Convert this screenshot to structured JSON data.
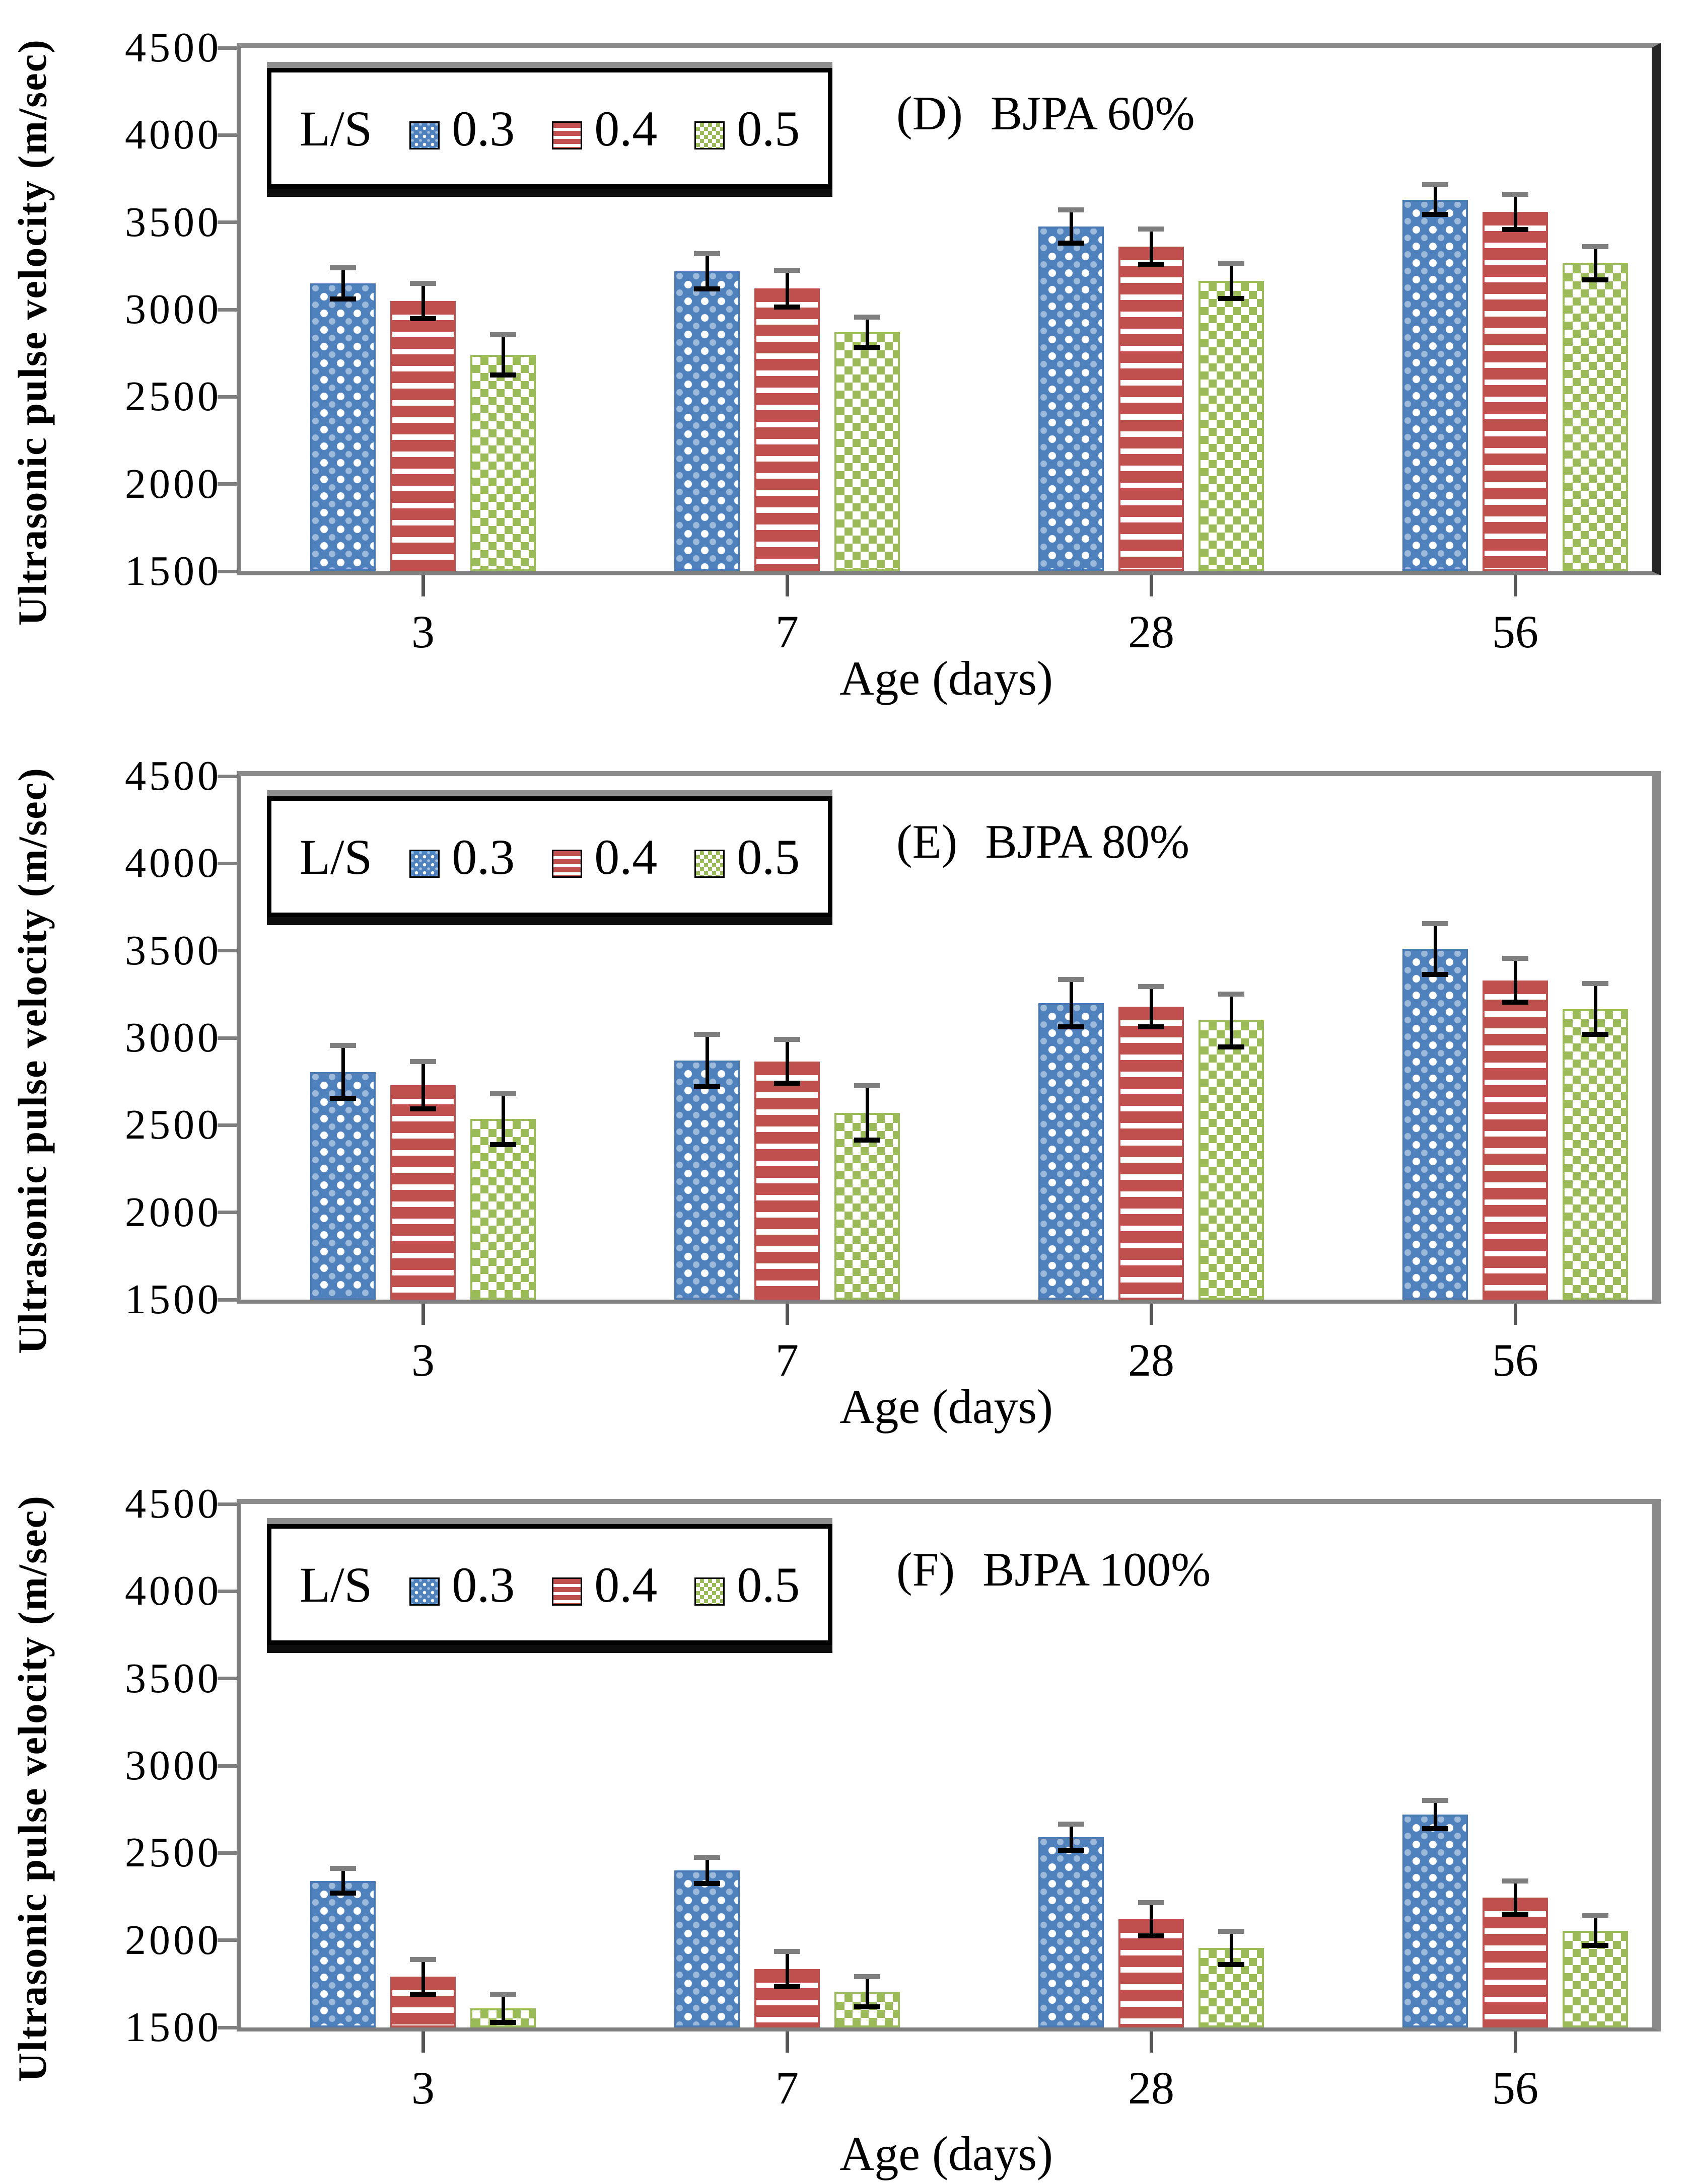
{
  "figure": {
    "background": "#ffffff"
  },
  "error_bar_style": {
    "line": "#000000",
    "cap_top": "#7f7f7f",
    "cap_bottom": "#000000"
  },
  "chart_data": [
    {
      "type": "bar",
      "panel_label": "(D)",
      "title": "BJPA 60%",
      "xlabel": "Age (days)",
      "ylabel": "Ultrasonic pulse velocity (m/sec)",
      "legend_prefix": "L/S",
      "legend_position": "top-left-inside",
      "grid": false,
      "ylim": [
        1500,
        4500
      ],
      "yticks": [
        4500,
        4000,
        3500,
        3000,
        2500,
        2000,
        1500
      ],
      "categories": [
        "3",
        "7",
        "28",
        "56"
      ],
      "axis_color": "#7f7f7f",
      "right_border_color": "#262626",
      "series": [
        {
          "name": "0.3",
          "pattern": "dots",
          "color": "#4F81BD",
          "values": [
            3150,
            3220,
            3475,
            3630
          ],
          "errors": [
            105,
            115,
            110,
            100
          ]
        },
        {
          "name": "0.4",
          "pattern": "hstripes",
          "color": "#C0504D",
          "values": [
            3050,
            3120,
            3360,
            3560
          ],
          "errors": [
            115,
            120,
            115,
            115
          ]
        },
        {
          "name": "0.5",
          "pattern": "checks",
          "color": "#9BBB59",
          "values": [
            2740,
            2870,
            3165,
            3265
          ],
          "errors": [
            130,
            100,
            115,
            110
          ]
        }
      ]
    },
    {
      "type": "bar",
      "panel_label": "(E)",
      "title": "BJPA 80%",
      "xlabel": "Age (days)",
      "ylabel": "Ultrasonic pulse velocity (m/sec)",
      "legend_prefix": "L/S",
      "legend_position": "top-left-inside",
      "grid": false,
      "ylim": [
        1500,
        4500
      ],
      "yticks": [
        4500,
        4000,
        3500,
        3000,
        2500,
        2000,
        1500
      ],
      "categories": [
        "3",
        "7",
        "28",
        "56"
      ],
      "axis_color": "#7f7f7f",
      "right_border_color": "#8a8a8a",
      "series": [
        {
          "name": "0.3",
          "pattern": "dots",
          "color": "#4F81BD",
          "values": [
            2805,
            2870,
            3200,
            3510
          ],
          "errors": [
            165,
            165,
            150,
            160
          ]
        },
        {
          "name": "0.4",
          "pattern": "hstripes",
          "color": "#C0504D",
          "values": [
            2730,
            2865,
            3180,
            3330
          ],
          "errors": [
            150,
            140,
            130,
            140
          ]
        },
        {
          "name": "0.5",
          "pattern": "checks",
          "color": "#9BBB59",
          "values": [
            2535,
            2570,
            3100,
            3165
          ],
          "errors": [
            160,
            170,
            165,
            160
          ]
        }
      ]
    },
    {
      "type": "bar",
      "panel_label": "(F)",
      "title": "BJPA 100%",
      "xlabel": "Age (days)",
      "ylabel": "Ultrasonic pulse velocity (m/sec)",
      "legend_prefix": "L/S",
      "legend_position": "top-left-inside",
      "grid": false,
      "ylim": [
        1500,
        4500
      ],
      "yticks": [
        4500,
        4000,
        3500,
        3000,
        2500,
        2000,
        1500
      ],
      "categories": [
        "3",
        "7",
        "28",
        "56"
      ],
      "axis_color": "#7f7f7f",
      "right_border_color": "#8a8a8a",
      "series": [
        {
          "name": "0.3",
          "pattern": "dots",
          "color": "#4F81BD",
          "values": [
            2340,
            2400,
            2590,
            2720
          ],
          "errors": [
            85,
            90,
            90,
            95
          ]
        },
        {
          "name": "0.4",
          "pattern": "hstripes",
          "color": "#C0504D",
          "values": [
            1790,
            1835,
            2120,
            2245
          ],
          "errors": [
            115,
            115,
            110,
            110
          ]
        },
        {
          "name": "0.5",
          "pattern": "checks",
          "color": "#9BBB59",
          "values": [
            1610,
            1705,
            1955,
            2055
          ],
          "errors": [
            95,
            100,
            110,
            100
          ]
        }
      ]
    }
  ]
}
